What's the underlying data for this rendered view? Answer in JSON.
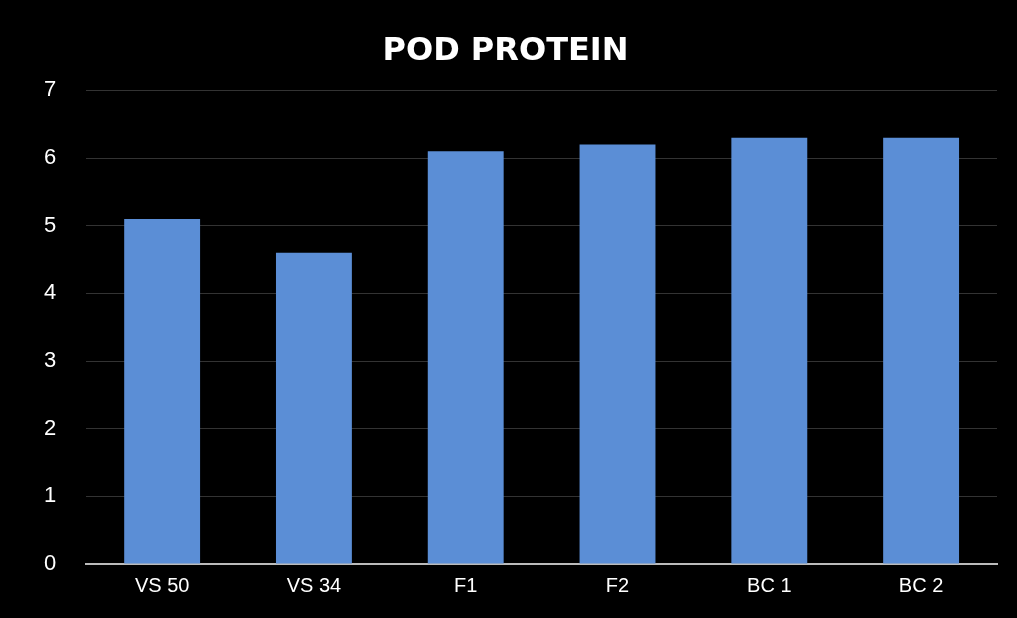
{
  "chart_data": {
    "type": "bar",
    "title": "POD PROTEIN",
    "categories": [
      "VS 50",
      "VS 34",
      "F1",
      "F2",
      "BC 1",
      "BC 2"
    ],
    "values": [
      5.1,
      4.6,
      6.1,
      6.2,
      6.3,
      6.3
    ],
    "color": "#5b8ed6",
    "ylim": [
      0,
      7
    ],
    "yticks": [
      0,
      1,
      2,
      3,
      4,
      5,
      6,
      7
    ],
    "grid": "y",
    "legend": false
  }
}
